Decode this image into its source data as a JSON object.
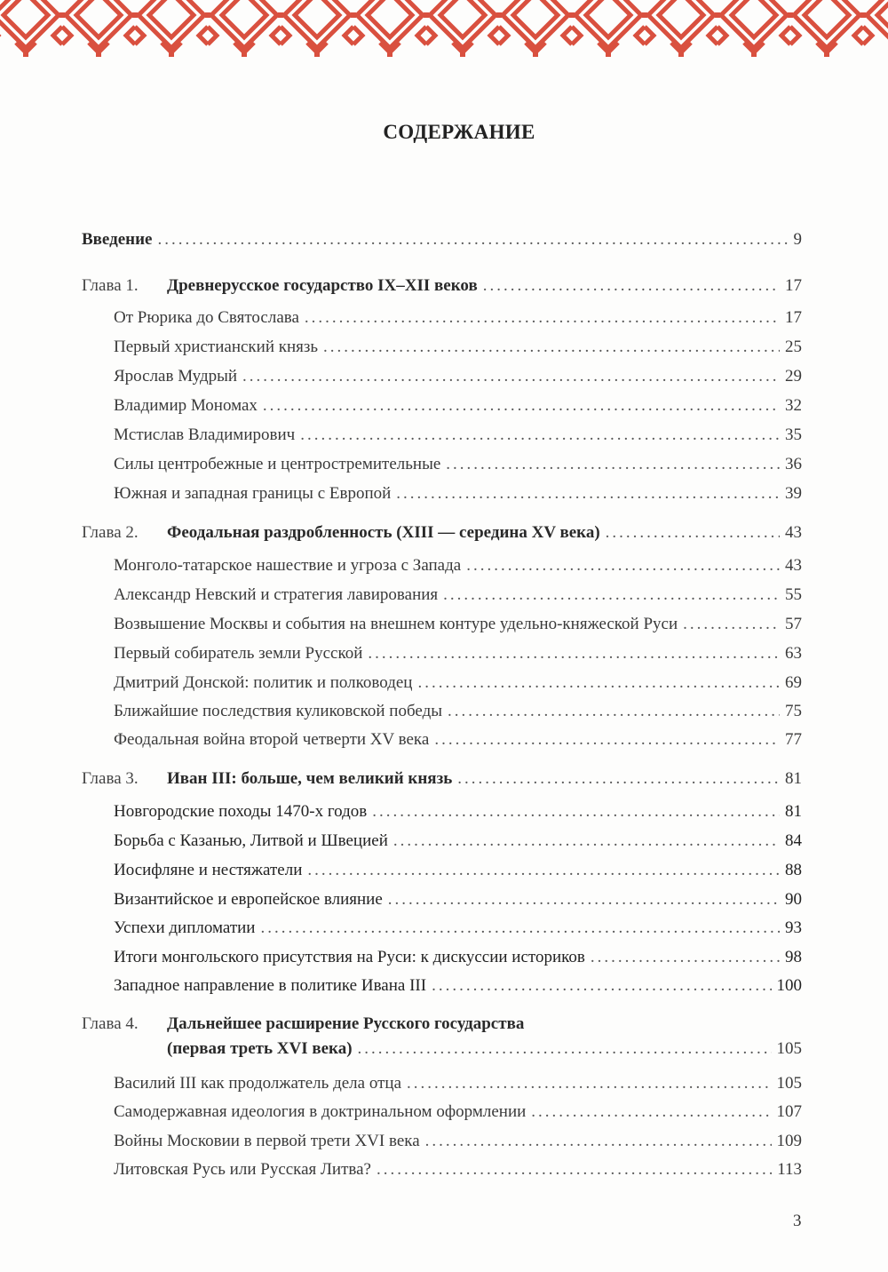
{
  "ornament": {
    "color": "#d9503f"
  },
  "title": "СОДЕРЖАНИЕ",
  "intro": {
    "title": "Введение",
    "page": "9"
  },
  "chapters": [
    {
      "label": "Глава 1.",
      "title": "Древнерусское государство IX–XII веков",
      "page": "17",
      "sections": [
        {
          "title": "От Рюрика до Святослава",
          "page": "17"
        },
        {
          "title": "Первый христианский князь",
          "page": "25"
        },
        {
          "title": "Ярослав Мудрый",
          "page": "29"
        },
        {
          "title": "Владимир Мономах",
          "page": "32"
        },
        {
          "title": "Мстислав Владимирович",
          "page": "35"
        },
        {
          "title": "Силы центробежные и центростремительные",
          "page": "36"
        },
        {
          "title": "Южная и западная границы с Европой",
          "page": "39"
        }
      ]
    },
    {
      "label": "Глава 2.",
      "title": "Феодальная раздробленность (XIII — середина XV века)",
      "page": "43",
      "sections": [
        {
          "title": "Монголо-татарское нашествие и угроза с Запада",
          "page": "43"
        },
        {
          "title": "Александр Невский и стратегия лавирования",
          "page": "55"
        },
        {
          "title": "Возвышение Москвы и события на внешнем контуре удельно-княжеской Руси",
          "page": "57"
        },
        {
          "title": "Первый собиратель земли Русской",
          "page": "63"
        },
        {
          "title": "Дмитрий Донской: политик и полководец",
          "page": "69"
        },
        {
          "title": "Ближайшие последствия куликовской победы",
          "page": "75"
        },
        {
          "title": "Феодальная война второй четверти XV века",
          "page": "77"
        }
      ]
    },
    {
      "label": "Глава 3.",
      "title": "Иван III: больше, чем великий князь",
      "page": "81",
      "sections": [
        {
          "title": "Новгородские походы 1470-х годов",
          "page": "81"
        },
        {
          "title": "Борьба с Казанью, Литвой и Швецией",
          "page": "84"
        },
        {
          "title": "Иосифляне и нестяжатели",
          "page": "88"
        },
        {
          "title": "Византийское и европейское влияние",
          "page": "90"
        },
        {
          "title": "Успехи дипломатии",
          "page": "93"
        },
        {
          "title": "Итоги монгольского присутствия на Руси: к дискуссии историков",
          "page": "98"
        },
        {
          "title": "Западное направление в политике Ивана III",
          "page": "100"
        }
      ]
    },
    {
      "label": "Глава 4.",
      "title": "Дальнейшее расширение Русского государства",
      "title_line2": "(первая треть XVI века)",
      "page": "105",
      "sections": [
        {
          "title": "Василий III как продолжатель дела отца",
          "page": "105"
        },
        {
          "title": "Самодержавная идеология в доктринальном оформлении",
          "page": "107"
        },
        {
          "title": "Войны Московии в первой трети XVI века",
          "page": "109"
        },
        {
          "title": "Литовская Русь или Русская Литва?",
          "page": "113"
        }
      ]
    }
  ],
  "page_number": "3"
}
